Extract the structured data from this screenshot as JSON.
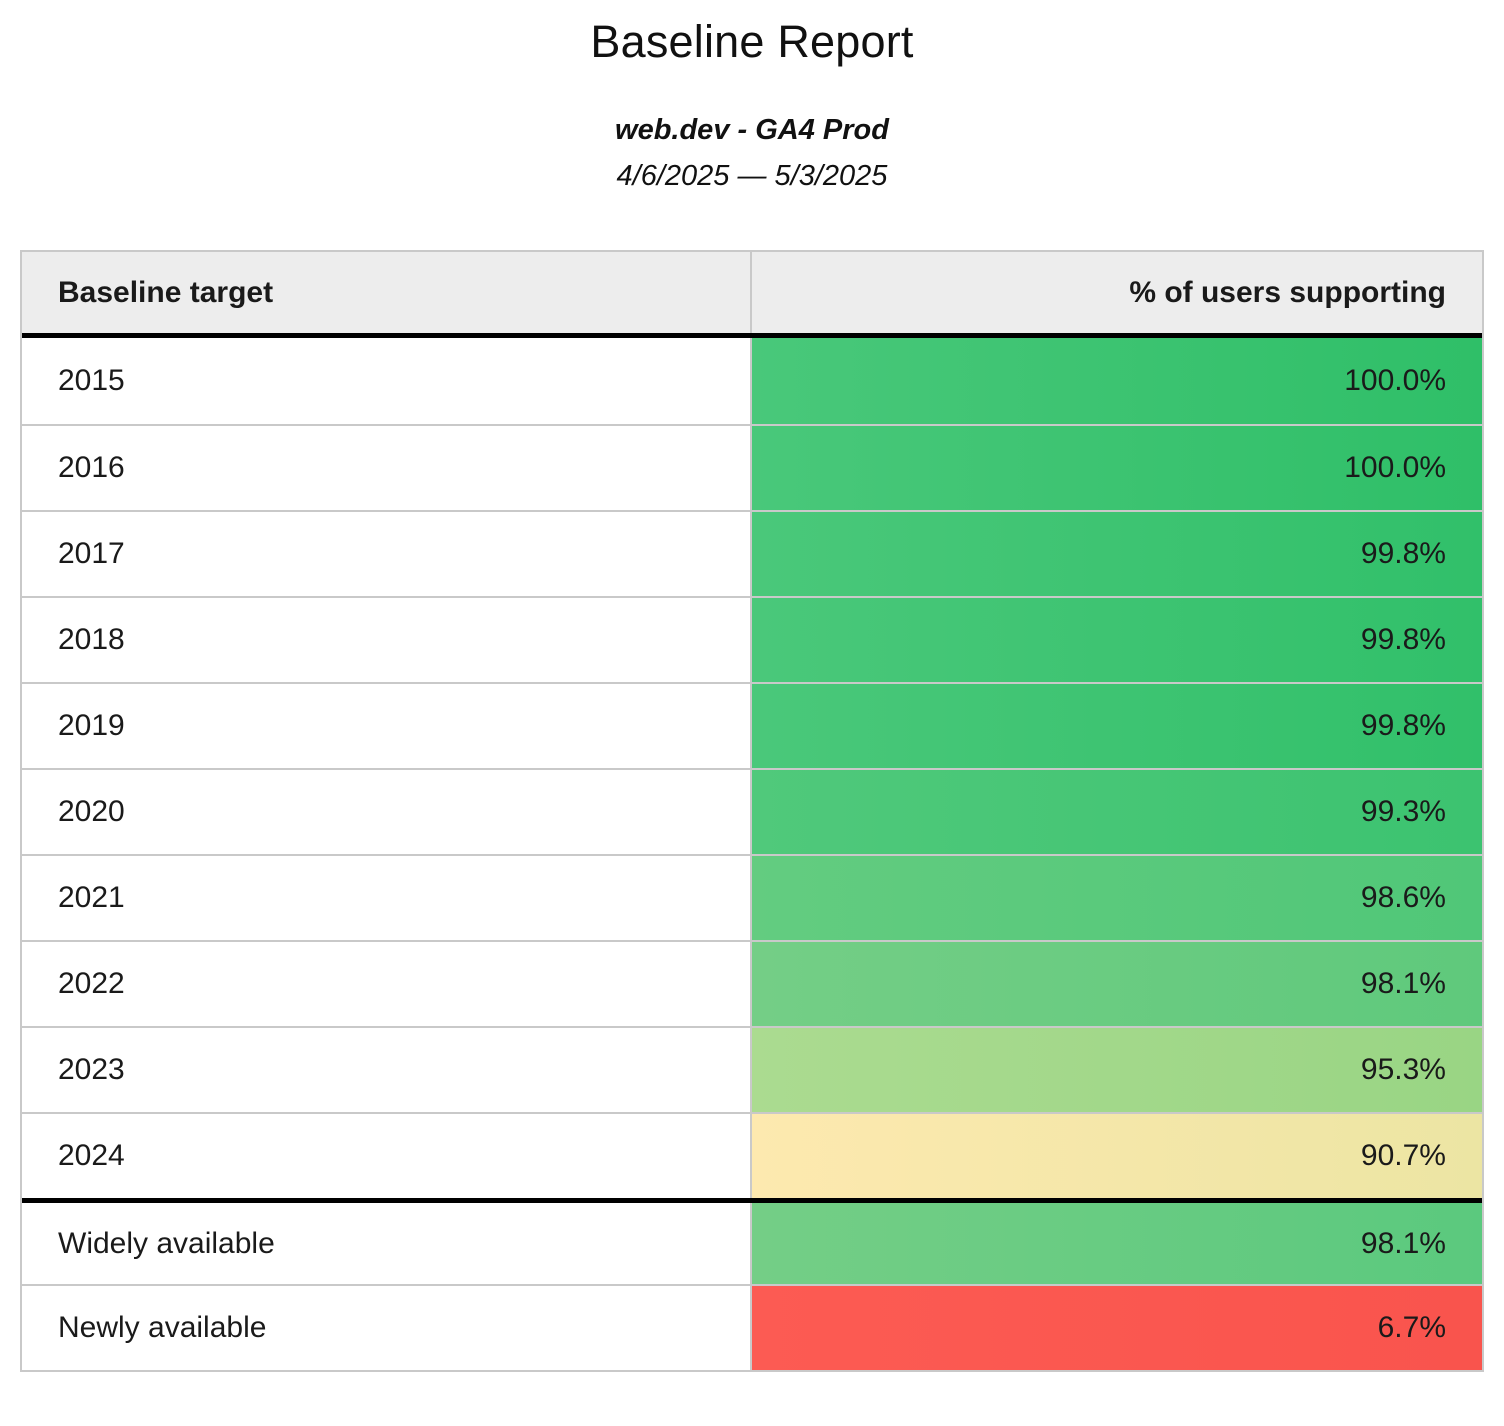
{
  "report": {
    "title": "Baseline Report",
    "property": "web.dev - GA4 Prod",
    "date_range": "4/6/2025 — 5/3/2025"
  },
  "table": {
    "header": {
      "target": "Baseline target",
      "value": "% of users supporting"
    },
    "rows": [
      {
        "target": "2015",
        "value": "100.0%",
        "color_left": "#49c87a",
        "color_right": "#2fbf68"
      },
      {
        "target": "2016",
        "value": "100.0%",
        "color_left": "#49c87a",
        "color_right": "#2fbf68"
      },
      {
        "target": "2017",
        "value": "99.8%",
        "color_left": "#4ac87a",
        "color_right": "#31c06a"
      },
      {
        "target": "2018",
        "value": "99.8%",
        "color_left": "#4ac87a",
        "color_right": "#31c06a"
      },
      {
        "target": "2019",
        "value": "99.8%",
        "color_left": "#4ac87a",
        "color_right": "#31c06a"
      },
      {
        "target": "2020",
        "value": "99.3%",
        "color_left": "#50c97b",
        "color_right": "#3cc370"
      },
      {
        "target": "2021",
        "value": "98.6%",
        "color_left": "#63cc80",
        "color_right": "#50c778"
      },
      {
        "target": "2022",
        "value": "98.1%",
        "color_left": "#74ce86",
        "color_right": "#5fc97c"
      },
      {
        "target": "2023",
        "value": "95.3%",
        "color_left": "#abdb90",
        "color_right": "#99d584"
      },
      {
        "target": "2024",
        "value": "90.7%",
        "color_left": "#fde9af",
        "color_right": "#ece5a3"
      },
      {
        "target": "Widely available",
        "value": "98.1%",
        "color_left": "#74ce86",
        "color_right": "#5bc97e"
      },
      {
        "target": "Newly available",
        "value": "6.7%",
        "color_left": "#fc5b53",
        "color_right": "#f9544d"
      }
    ]
  },
  "chart_data": {
    "type": "table",
    "title": "Baseline Report",
    "subtitle": "web.dev - GA4 Prod",
    "date_range": "4/6/2025 — 5/3/2025",
    "columns": [
      "Baseline target",
      "% of users supporting"
    ],
    "categories": [
      "2015",
      "2016",
      "2017",
      "2018",
      "2019",
      "2020",
      "2021",
      "2022",
      "2023",
      "2024",
      "Widely available",
      "Newly available"
    ],
    "values": [
      100.0,
      100.0,
      99.8,
      99.8,
      99.8,
      99.3,
      98.6,
      98.1,
      95.3,
      90.7,
      98.1,
      6.7
    ],
    "value_unit": "%",
    "color_scale": {
      "high": "#2fbf68",
      "mid": "#fde9af",
      "low": "#fc5b53"
    },
    "notes": "Cells are heatmap-colored by support percentage; thick rule separates year targets from availability status rows."
  }
}
